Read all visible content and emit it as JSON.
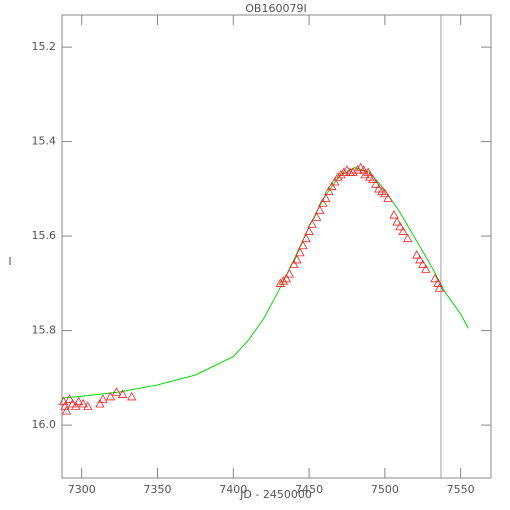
{
  "chart_data": {
    "type": "scatter",
    "title": "OB160079I",
    "x_label": "JD - 2450000",
    "y_label": "I",
    "xlim": [
      7287,
      7570
    ],
    "xticks": [
      7300,
      7350,
      7400,
      7450,
      7500,
      7550
    ],
    "ylim": [
      16.112,
      15.132
    ],
    "yticks": [
      15.2,
      15.4,
      15.6,
      15.8,
      {
        "value": 16.0,
        "label": "16.0"
      }
    ],
    "vline": {
      "x": 7537,
      "color": "#9a9aae"
    },
    "series": [
      {
        "type": "line",
        "color": "#00dd00",
        "x": [
          7287,
          7300,
          7325,
          7350,
          7375,
          7400,
          7410,
          7420,
          7430,
          7440,
          7450,
          7460,
          7470,
          7480,
          7490,
          7500,
          7510,
          7520,
          7530,
          7540,
          7550,
          7555
        ],
        "values": [
          15.943,
          15.939,
          15.93,
          15.915,
          15.894,
          15.855,
          15.82,
          15.775,
          15.715,
          15.65,
          15.58,
          15.518,
          15.473,
          15.455,
          15.465,
          15.503,
          15.55,
          15.605,
          15.66,
          15.72,
          15.765,
          15.795
        ]
      },
      {
        "type": "scatter",
        "color": "#ee2222",
        "x": [
          7288,
          7289,
          7290,
          7292,
          7294,
          7296,
          7298,
          7301,
          7304,
          7312,
          7314,
          7319,
          7323,
          7327,
          7333,
          7431,
          7433,
          7435,
          7437,
          7440,
          7442,
          7444,
          7446,
          7448,
          7450,
          7452,
          7455,
          7457,
          7459,
          7461,
          7463,
          7465,
          7467,
          7469,
          7471,
          7473,
          7475,
          7477,
          7479,
          7482,
          7484,
          7486,
          7487,
          7489,
          7490,
          7492,
          7494,
          7496,
          7498,
          7500,
          7502,
          7506,
          7508,
          7510,
          7512,
          7515,
          7521,
          7523,
          7525,
          7527,
          7533,
          7535,
          7536
        ],
        "values": [
          15.95,
          15.96,
          15.97,
          15.945,
          15.955,
          15.96,
          15.95,
          15.955,
          15.96,
          15.955,
          15.945,
          15.94,
          15.93,
          15.935,
          15.94,
          15.7,
          15.695,
          15.69,
          15.68,
          15.66,
          15.65,
          15.635,
          15.62,
          15.605,
          15.59,
          15.575,
          15.56,
          15.545,
          15.53,
          15.52,
          15.505,
          15.495,
          15.485,
          15.475,
          15.47,
          15.465,
          15.46,
          15.465,
          15.465,
          15.46,
          15.455,
          15.46,
          15.47,
          15.465,
          15.475,
          15.48,
          15.49,
          15.5,
          15.505,
          15.51,
          15.52,
          15.555,
          15.57,
          15.58,
          15.59,
          15.605,
          15.64,
          15.65,
          15.66,
          15.67,
          15.69,
          15.7,
          15.71
        ]
      }
    ]
  }
}
